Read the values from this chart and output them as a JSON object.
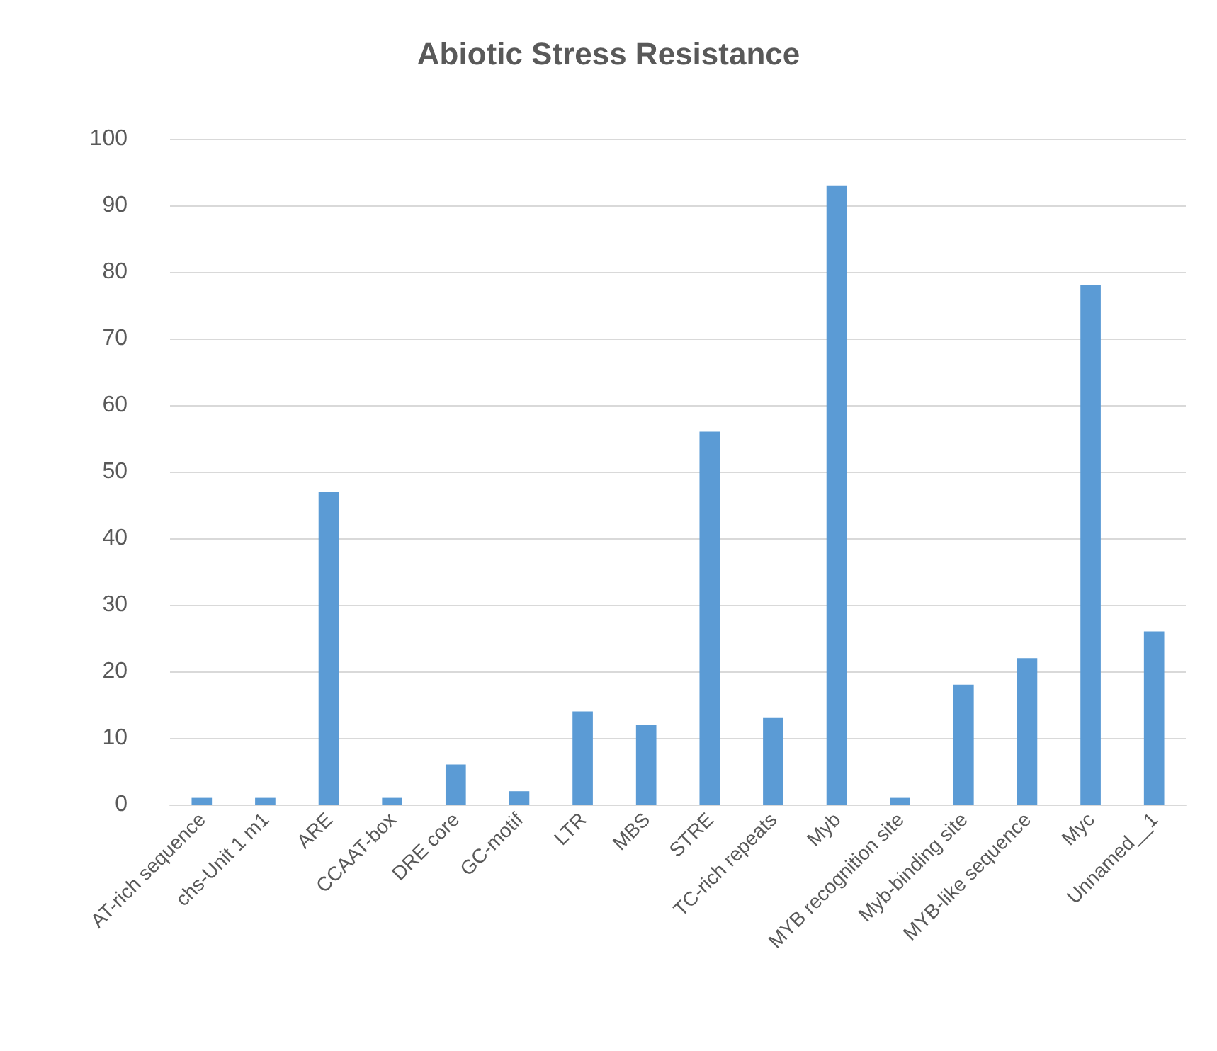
{
  "chart_data": {
    "type": "bar",
    "title": "Abiotic Stress Resistance",
    "categories": [
      "AT-rich sequence",
      "chs-Unit 1 m1",
      "ARE",
      "CCAAT-box",
      "DRE core",
      "GC-motif",
      "LTR",
      "MBS",
      "STRE",
      "TC-rich repeats",
      "Myb",
      "MYB recognition site",
      "Myb-binding site",
      "MYB-like sequence",
      "Myc",
      "Unnamed__1"
    ],
    "values": [
      1,
      1,
      47,
      1,
      6,
      2,
      14,
      12,
      56,
      13,
      93,
      1,
      18,
      22,
      78,
      26
    ],
    "color": "#5b9bd5",
    "ylim": [
      0,
      100
    ],
    "yticks": [
      0,
      10,
      20,
      30,
      40,
      50,
      60,
      70,
      80,
      90,
      100
    ],
    "grid": "y"
  }
}
